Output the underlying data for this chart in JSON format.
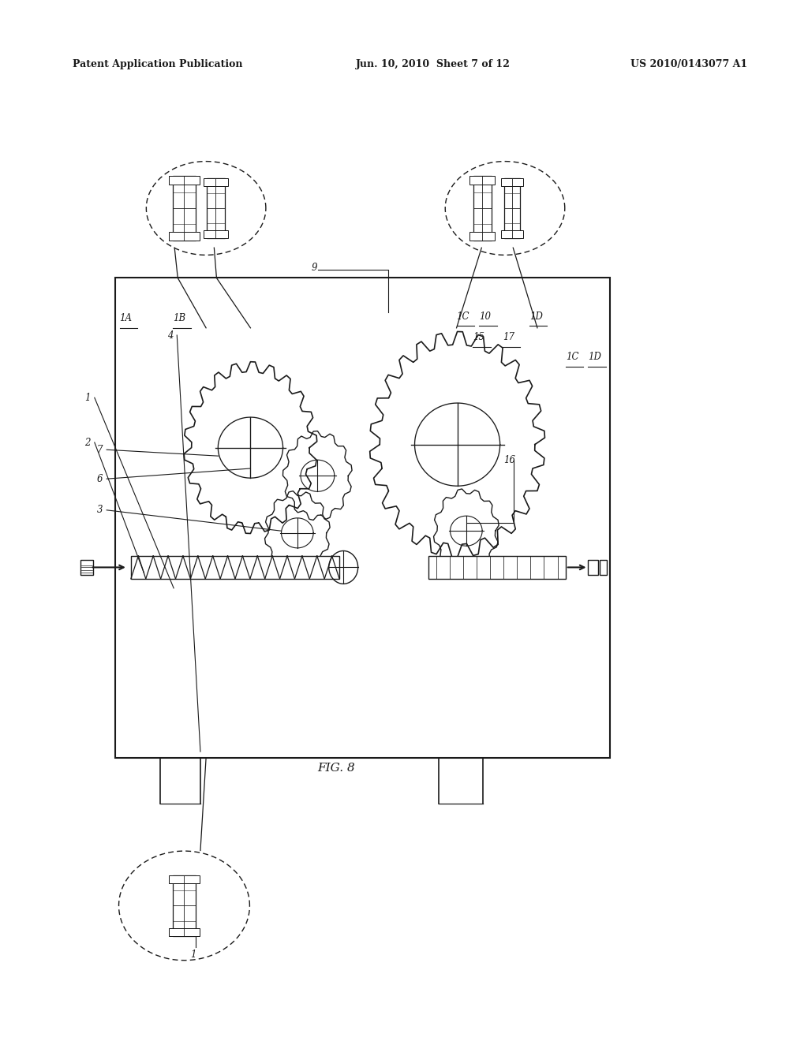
{
  "header_left": "Patent Application Publication",
  "header_mid": "Jun. 10, 2010  Sheet 7 of 12",
  "header_right": "US 2010/0143077 A1",
  "fig_label": "FIG. 8",
  "bg_color": "#ffffff",
  "line_color": "#1a1a1a"
}
